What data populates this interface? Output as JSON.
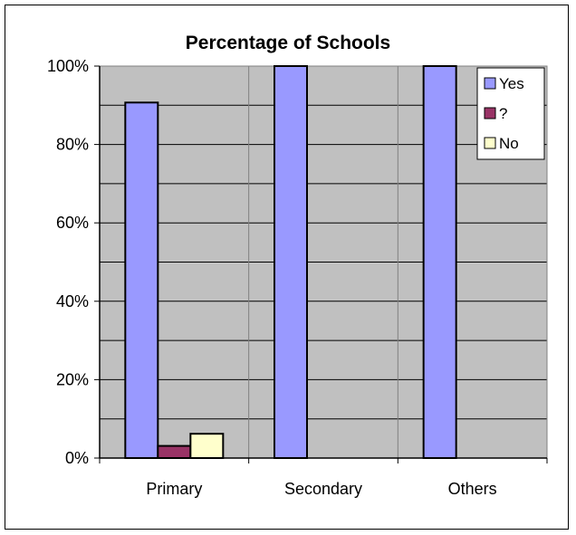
{
  "chart_data": {
    "type": "bar",
    "title": "Percentage of Schools",
    "categories": [
      "Primary",
      "Secondary",
      "Others"
    ],
    "series": [
      {
        "name": "Yes",
        "values": [
          90.7,
          100,
          100
        ],
        "color": "#9999FF"
      },
      {
        "name": "?",
        "values": [
          3.1,
          0,
          0
        ],
        "color": "#993366"
      },
      {
        "name": "No",
        "values": [
          6.2,
          0,
          0
        ],
        "color": "#FFFFCC"
      }
    ],
    "ylim": [
      0,
      100
    ],
    "yticks": [
      "0%",
      "20%",
      "40%",
      "60%",
      "80%",
      "100%"
    ],
    "ytick_values": [
      0,
      20,
      40,
      60,
      80,
      100
    ],
    "xlabel": "",
    "ylabel": "",
    "grid": true,
    "plot_background": "#C0C0C0",
    "legend_position": "top-right"
  }
}
